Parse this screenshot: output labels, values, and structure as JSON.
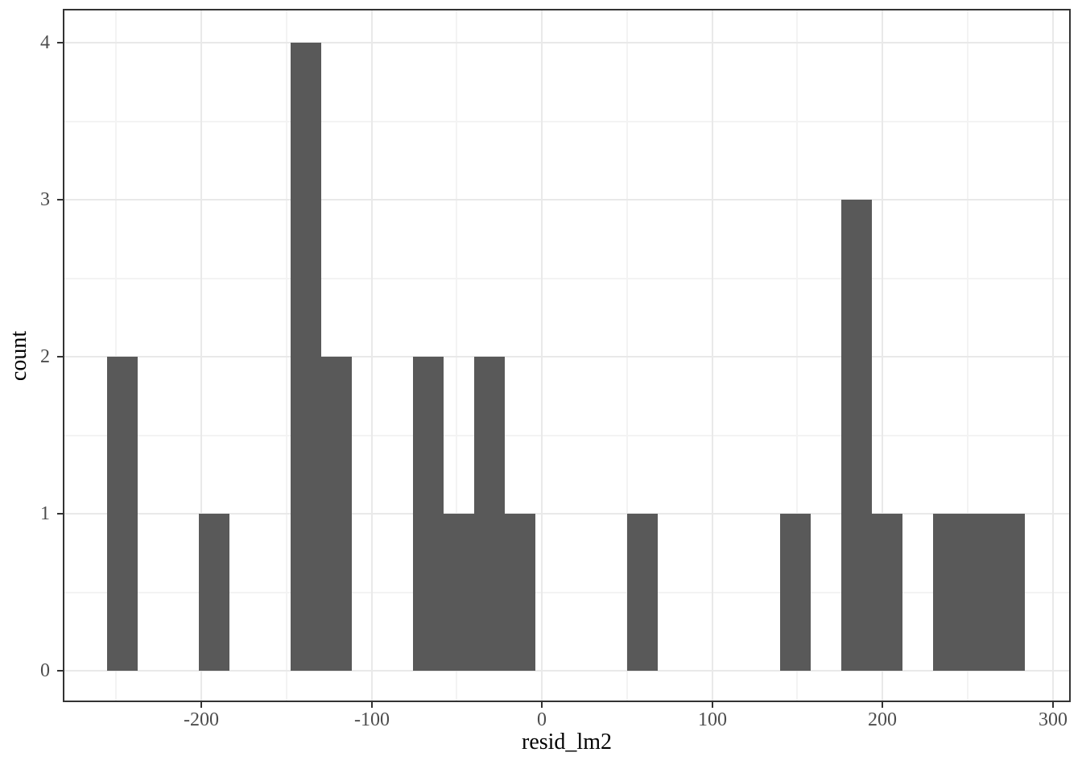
{
  "chart_data": {
    "type": "bar",
    "subtype": "histogram",
    "title": "",
    "xlabel": "resid_lm2",
    "ylabel": "count",
    "x_ticks": [
      -200,
      -100,
      0,
      100,
      200,
      300
    ],
    "x_tick_labels": [
      "-200",
      "-100",
      "0",
      "100",
      "200",
      "300"
    ],
    "x_minor_ticks": [
      -250,
      -150,
      -50,
      50,
      150,
      250
    ],
    "y_ticks": [
      0,
      1,
      2,
      3,
      4
    ],
    "y_tick_labels": [
      "0",
      "1",
      "2",
      "3",
      "4"
    ],
    "y_minor_ticks": [
      0.5,
      1.5,
      2.5,
      3.5
    ],
    "xlim": [
      -281,
      310
    ],
    "ylim": [
      -0.2,
      4.2
    ],
    "grid": "major-and-minor",
    "legend": "none",
    "bin_start": -255.3,
    "bin_width": 17.96,
    "bin_counts": [
      2,
      0,
      0,
      1,
      0,
      0,
      4,
      2,
      0,
      0,
      2,
      1,
      2,
      1,
      0,
      0,
      0,
      1,
      0,
      0,
      0,
      0,
      1,
      0,
      3,
      1,
      0,
      1,
      1,
      1
    ],
    "total_observations": 24,
    "colors": {
      "bar_fill": "#595959",
      "panel_border": "#333333",
      "grid_major": "#e9e9e9",
      "grid_minor": "#f3f3f3",
      "tick_mark": "#333333",
      "tick_label": "#4d4d4d",
      "axis_title": "#000000",
      "background": "#ffffff"
    }
  }
}
